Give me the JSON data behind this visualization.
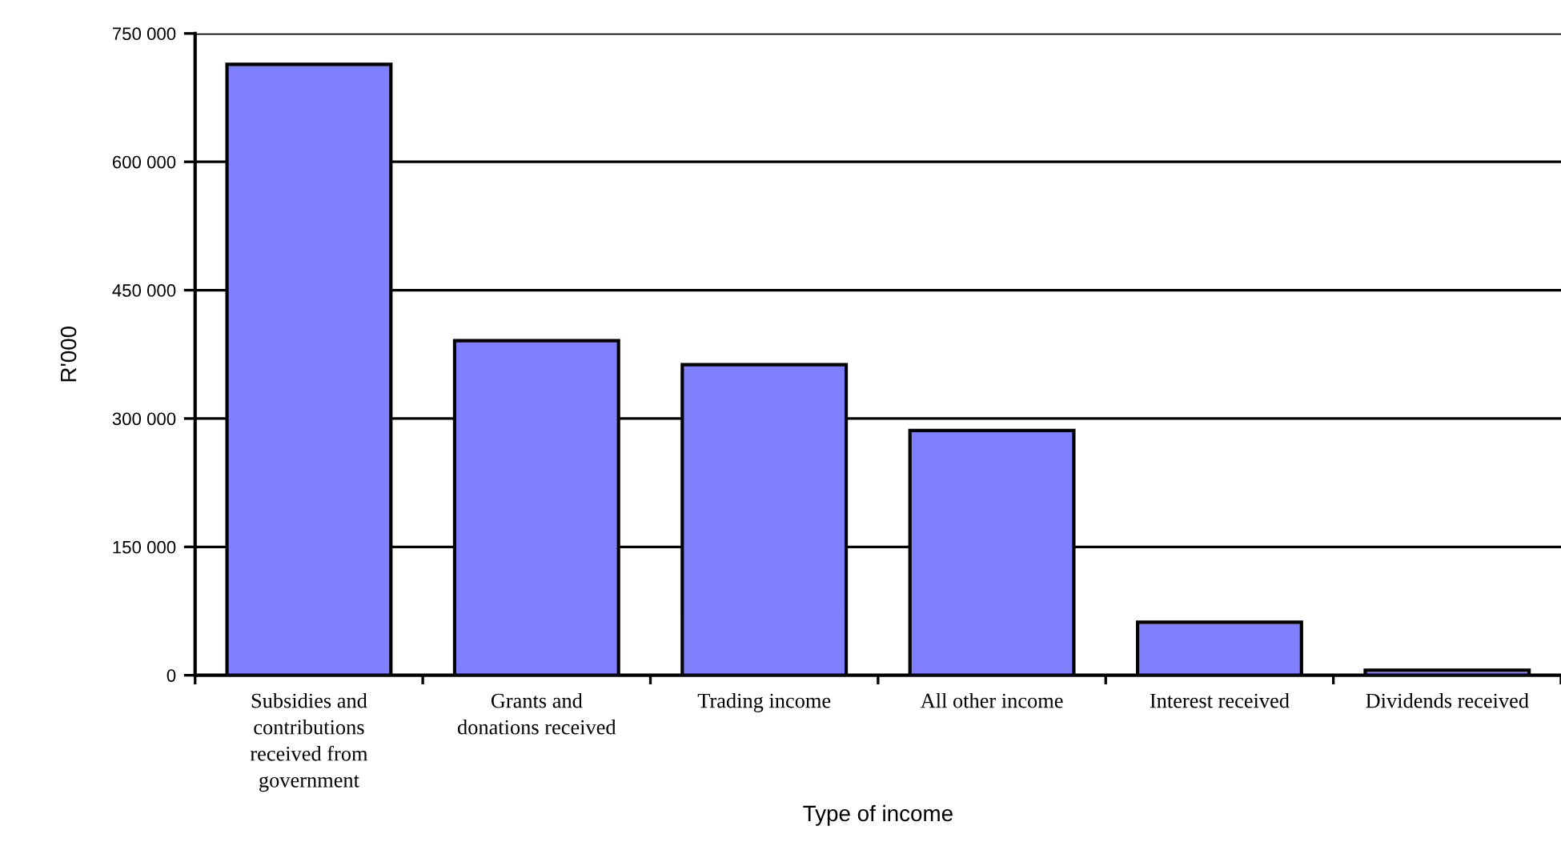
{
  "chart_data": {
    "type": "bar",
    "xlabel": "Type of income",
    "ylabel": "R'000",
    "categories": [
      "Subsidies and\ncontributions\nreceived from\ngovernment",
      "Grants and\ndonations received",
      "Trading income",
      "All other income",
      "Interest received",
      "Dividends received"
    ],
    "values": [
      714000,
      391000,
      363000,
      286000,
      62000,
      6000
    ],
    "color": "#8080ff",
    "ylim": [
      0,
      750000
    ],
    "yticks": [
      0,
      {
        "value": 150000,
        "label": "150 000"
      },
      {
        "value": 300000,
        "label": "300 000"
      },
      {
        "value": 450000,
        "label": "450 000"
      },
      {
        "value": 600000,
        "label": "600 000"
      },
      {
        "value": 750000,
        "label": "750 000"
      }
    ],
    "grid": "y",
    "legend": false
  }
}
